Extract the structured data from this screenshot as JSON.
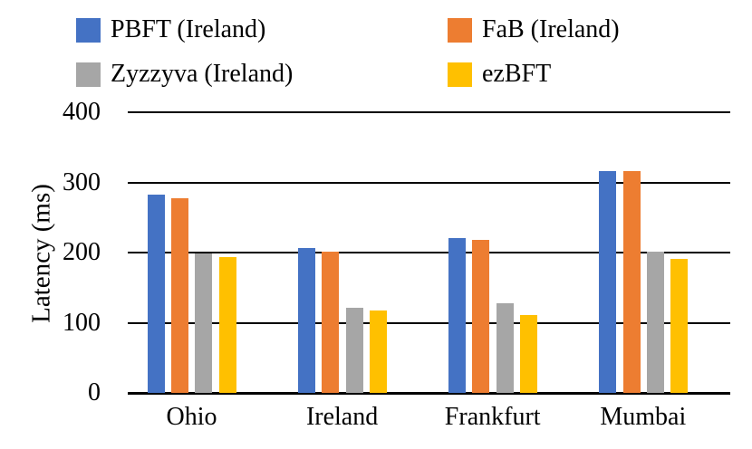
{
  "chart_data": {
    "type": "bar",
    "title": "",
    "xlabel": "",
    "ylabel": "Latency (ms)",
    "categories": [
      "Ohio",
      "Ireland",
      "Frankfurt",
      "Mumbai"
    ],
    "series": [
      {
        "name": "PBFT (Ireland)",
        "color": "#4472C4",
        "values": [
          283,
          206,
          221,
          316
        ]
      },
      {
        "name": "FaB (Ireland)",
        "color": "#ED7D31",
        "values": [
          277,
          201,
          218,
          316
        ]
      },
      {
        "name": "Zyzzyva (Ireland)",
        "color": "#A6A6A6",
        "values": [
          199,
          121,
          128,
          201
        ]
      },
      {
        "name": "ezBFT",
        "color": "#FFC000",
        "values": [
          194,
          118,
          111,
          191
        ]
      }
    ],
    "yticks": [
      0,
      100,
      200,
      300,
      400
    ],
    "ylim": [
      0,
      400
    ],
    "grid": true,
    "gridline_color": "#000000",
    "legend_position": "top"
  }
}
